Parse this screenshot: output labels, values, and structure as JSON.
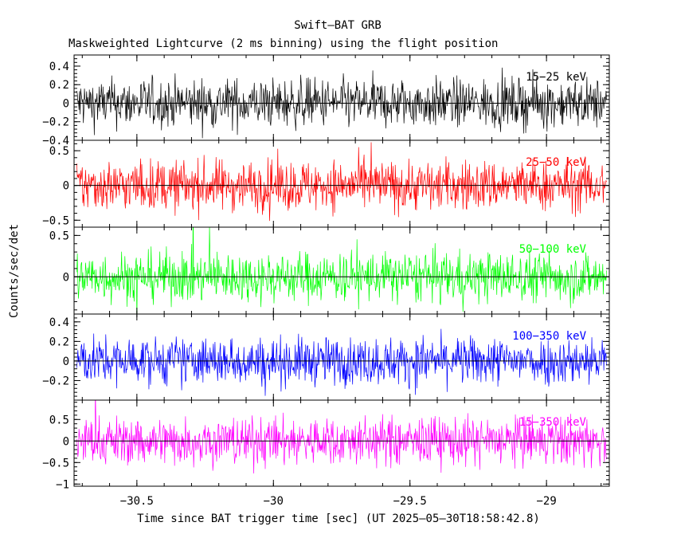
{
  "title": "Swift–BAT GRB",
  "subtitle": "Maskweighted Lightcurve (2 ms binning) using the flight position",
  "ylabel": "Counts/sec/det",
  "xlabel": "Time since BAT trigger time [sec] (UT 2025–05–30T18:58:42.8)",
  "chart_data": {
    "type": "line",
    "xlim": [
      -30.73,
      -28.77
    ],
    "data_range": [
      -30.72,
      -28.78
    ],
    "bin_width": 0.002,
    "x_ticks": [
      -30.5,
      -30,
      -29.5,
      -29
    ],
    "x_tick_labels": [
      "−30.5",
      "−30",
      "−29.5",
      "−29"
    ],
    "panels": [
      {
        "label": "15−25 keV",
        "color": "#000000",
        "ylim": [
          -0.4,
          0.52
        ],
        "amplitude": 0.13,
        "y_ticks": [
          -0.4,
          -0.2,
          0,
          0.2,
          0.4
        ],
        "y_tick_labels": [
          "−0.4",
          "−0.2",
          "0",
          "0.2",
          "0.4"
        ]
      },
      {
        "label": "25−50 keV",
        "color": "#ff0000",
        "ylim": [
          -0.6,
          0.65
        ],
        "amplitude": 0.18,
        "y_ticks": [
          -0.5,
          0,
          0.5
        ],
        "y_tick_labels": [
          "−0.5",
          "0",
          "0.5"
        ]
      },
      {
        "label": "50−100 keV",
        "color": "#00ff00",
        "ylim": [
          -0.45,
          0.6
        ],
        "amplitude": 0.15,
        "y_ticks": [
          0,
          0.5
        ],
        "y_tick_labels": [
          "0",
          "0.5"
        ]
      },
      {
        "label": "100−350 keV",
        "color": "#0000ff",
        "ylim": [
          -0.4,
          0.48
        ],
        "amplitude": 0.12,
        "y_ticks": [
          -0.2,
          0,
          0.2,
          0.4
        ],
        "y_tick_labels": [
          "−0.2",
          "0",
          "0.2",
          "0.4"
        ]
      },
      {
        "label": "15−350 keV",
        "color": "#ff00ff",
        "ylim": [
          -1.05,
          0.95
        ],
        "amplitude": 0.28,
        "y_ticks": [
          -1,
          -0.5,
          0,
          0.5
        ],
        "y_tick_labels": [
          "−1",
          "−0.5",
          "0",
          "0.5"
        ]
      }
    ]
  }
}
